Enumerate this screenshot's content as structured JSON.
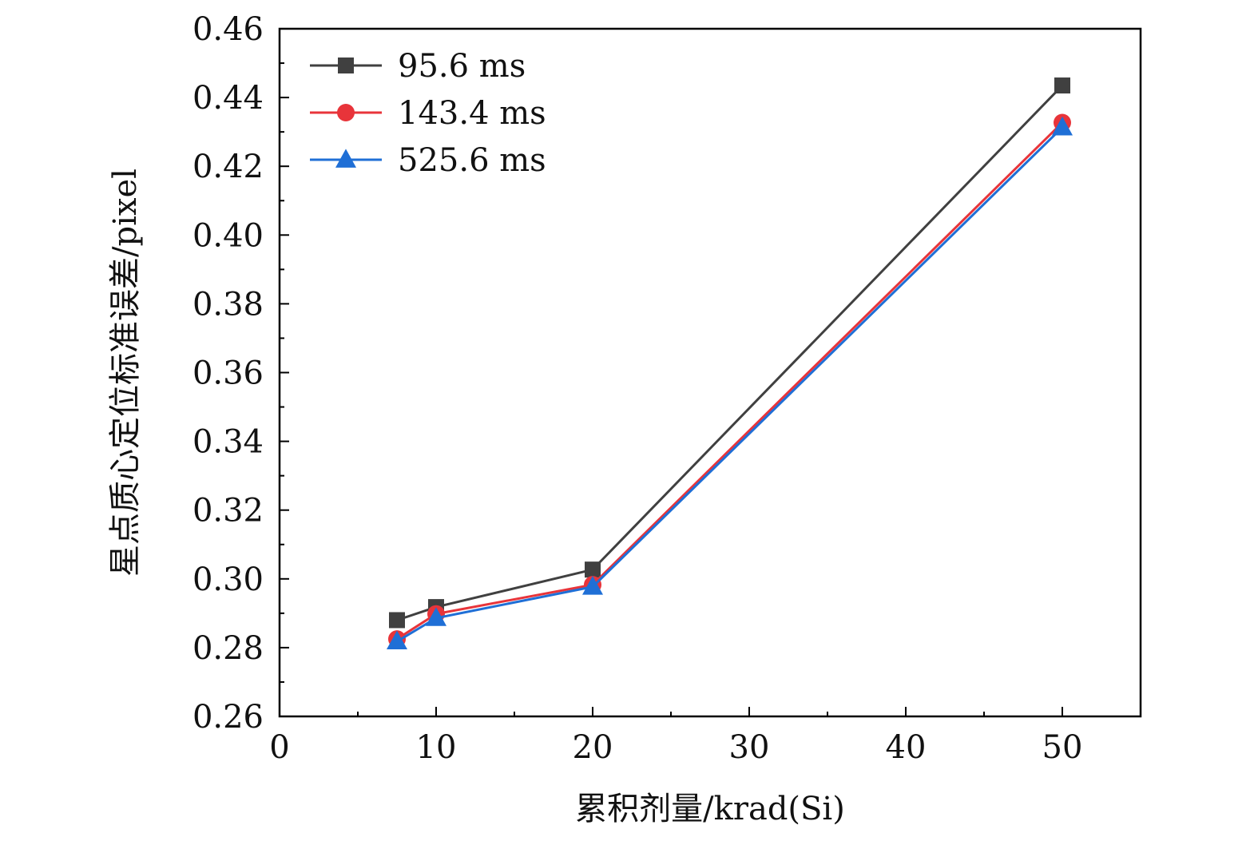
{
  "chart_data": {
    "type": "line",
    "xlabel": "累积剂量/krad(Si)",
    "ylabel": "星点质心定位标准误差/pixel",
    "xlim": [
      0,
      55
    ],
    "ylim": [
      0.26,
      0.46
    ],
    "x_ticks": [
      0,
      10,
      20,
      30,
      40,
      50
    ],
    "x_tick_labels": [
      "0",
      "10",
      "20",
      "30",
      "40",
      "50"
    ],
    "y_ticks": [
      0.26,
      0.28,
      0.3,
      0.32,
      0.34,
      0.36,
      0.38,
      0.4,
      0.42,
      0.44,
      0.46
    ],
    "y_tick_labels": [
      "0.26",
      "0.28",
      "0.30",
      "0.32",
      "0.34",
      "0.36",
      "0.38",
      "0.40",
      "0.42",
      "0.44",
      "0.46"
    ],
    "grid": false,
    "legend_position": "top-left",
    "x": [
      7.5,
      10,
      20,
      50
    ],
    "series": [
      {
        "name": "95.6 ms",
        "marker": "square",
        "color": "#404040",
        "values": [
          0.288,
          0.2918,
          0.3027,
          0.4435
        ]
      },
      {
        "name": "143.4 ms",
        "marker": "circle",
        "color": "#e8343a",
        "values": [
          0.2825,
          0.2898,
          0.2983,
          0.4327
        ]
      },
      {
        "name": "525.6 ms",
        "marker": "triangle",
        "color": "#1f6fd6",
        "values": [
          0.2818,
          0.2886,
          0.2977,
          0.4313
        ]
      }
    ]
  }
}
